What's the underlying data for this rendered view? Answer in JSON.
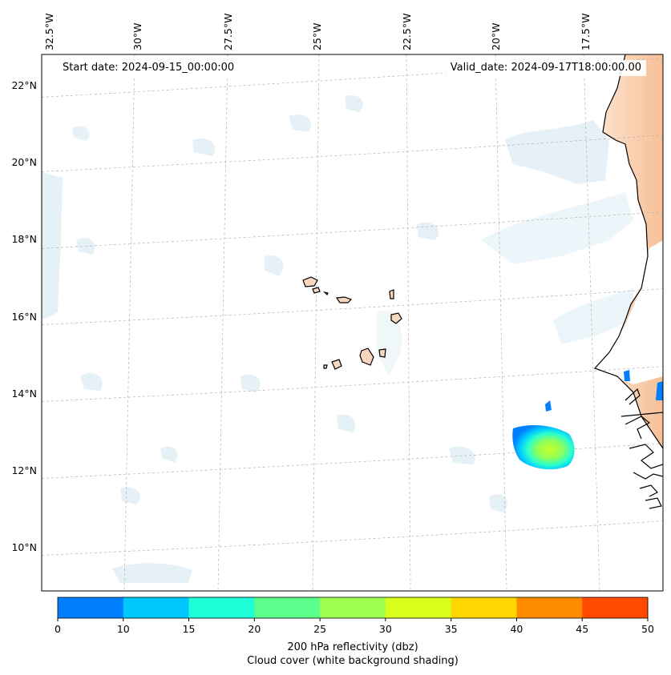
{
  "map": {
    "start_date": "Start date: 2024-09-15_00:00:00",
    "valid_date": "Valid_date: 2024-09-17T18:00:00.00",
    "lon_labels": [
      "32.5°W",
      "30°W",
      "27.5°W",
      "25°W",
      "22.5°W",
      "20°W",
      "17.5°W"
    ],
    "lat_labels": [
      "22°N",
      "20°N",
      "18°N",
      "16°N",
      "14°N",
      "12°N",
      "10°N"
    ],
    "colors": {
      "land_shading": "#f9c9a4",
      "cloud_shading": "#cfe6ef",
      "coastline": "#000000",
      "gridline": "#b0b0b0"
    }
  },
  "colorbar": {
    "ticks": [
      "0",
      "10",
      "15",
      "20",
      "25",
      "30",
      "35",
      "40",
      "45",
      "50"
    ],
    "colors": [
      "#0080ff",
      "#00c8ff",
      "#1effd8",
      "#5cff8c",
      "#9dff52",
      "#d8ff1c",
      "#ffd600",
      "#ff8c00",
      "#ff4a00"
    ],
    "label_line1": "200 hPa reflectivity (dbz)",
    "label_line2": "Cloud cover (white background shading)"
  }
}
